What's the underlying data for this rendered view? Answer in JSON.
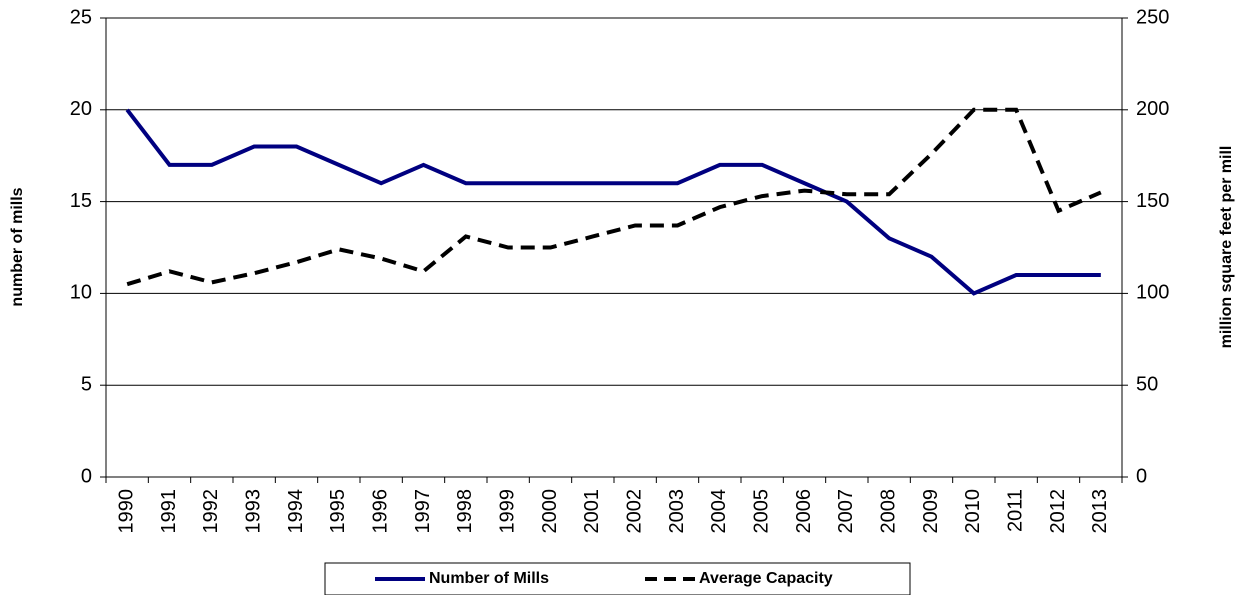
{
  "chart_data": {
    "type": "line",
    "y_label": "number of mills",
    "y2_label": "million square feet per mill",
    "categories": [
      "1990",
      "1991",
      "1992",
      "1993",
      "1994",
      "1995",
      "1996",
      "1997",
      "1998",
      "1999",
      "2000",
      "2001",
      "2002",
      "2003",
      "2004",
      "2005",
      "2006",
      "2007",
      "2008",
      "2009",
      "2010",
      "2011",
      "2012",
      "2013"
    ],
    "series": [
      {
        "name": "Number of Mills",
        "color": "#000080",
        "values": [
          20,
          17,
          17,
          18,
          18,
          17,
          16,
          17,
          16,
          16,
          16,
          16,
          16,
          16,
          17,
          17,
          16,
          15,
          13,
          12,
          10,
          11,
          11,
          11
        ]
      },
      {
        "name": "Average Capacity",
        "color": "#000000",
        "dashed": true,
        "axis": "y2",
        "values": [
          105,
          112,
          106,
          111,
          117,
          124,
          119,
          112,
          131,
          125,
          125,
          131,
          137,
          137,
          147,
          153,
          156,
          154,
          154,
          176,
          200,
          200,
          145,
          155
        ]
      }
    ],
    "ylim": [
      0,
      25
    ],
    "yticks": [
      0,
      5,
      10,
      15,
      20,
      25
    ],
    "y2lim": [
      0,
      250
    ],
    "y2ticks": [
      0,
      50,
      100,
      150,
      200,
      250
    ],
    "grid": true,
    "legend": "bottom"
  }
}
